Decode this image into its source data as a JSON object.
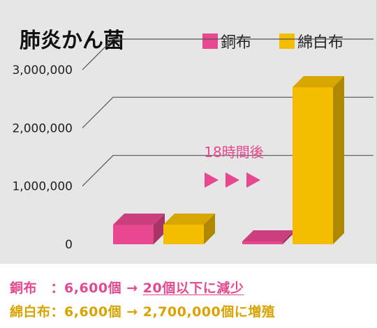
{
  "chart_data": {
    "type": "bar",
    "title": "肺炎かん菌",
    "categories": [
      "",
      ""
    ],
    "series": [
      {
        "name": "銅布",
        "color": "#e8488f",
        "values": [
          6600,
          20
        ]
      },
      {
        "name": "綿白布",
        "color": "#f5bd00",
        "values": [
          6600,
          2700000
        ]
      }
    ],
    "ylim": [
      0,
      3000000
    ],
    "yticks": [
      "0",
      "1,000,000",
      "2,000,000",
      "3,000,000"
    ],
    "annotation": "18時間後",
    "arrow_icon": "triangle-right-icon",
    "grid": true,
    "legend_position": "top-right"
  },
  "notes": {
    "copper": {
      "label": "銅布　：",
      "from": "6,600個 → ",
      "to": "20個以下に減少"
    },
    "cotton": {
      "label": "綿白布：",
      "from": "6,600個 → ",
      "to": "2,700,000個に増殖"
    }
  }
}
